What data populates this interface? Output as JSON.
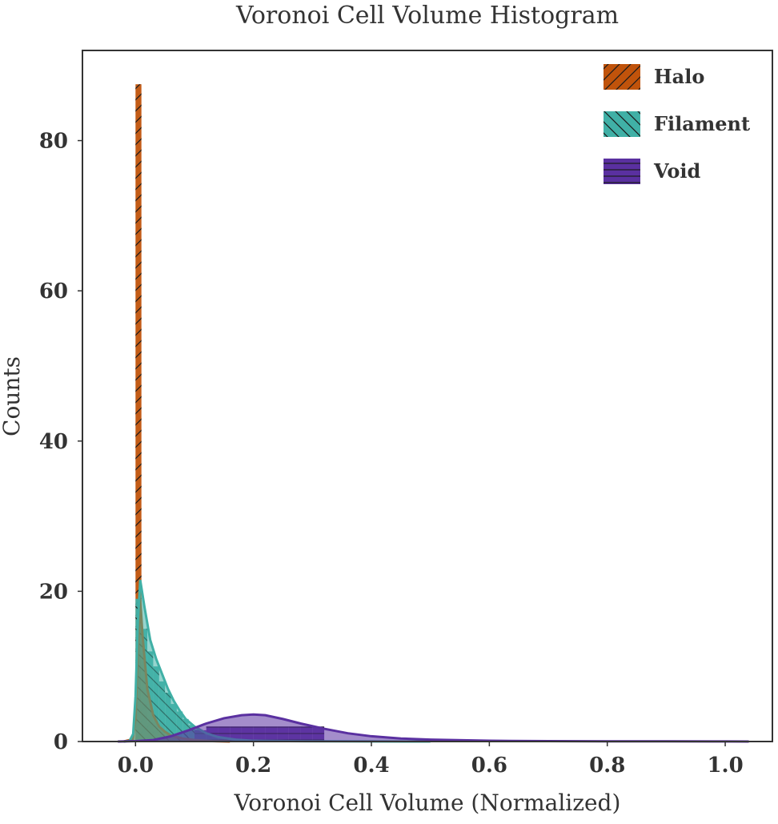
{
  "chart_data": {
    "type": "bar",
    "title": "Voronoi Cell Volume Histogram",
    "xlabel": "Voronoi Cell Volume (Normalized)",
    "ylabel": "Counts",
    "xlim": [
      -0.09,
      1.08
    ],
    "ylim": [
      0,
      92
    ],
    "xticks": [
      0.0,
      0.2,
      0.4,
      0.6,
      0.8,
      1.0
    ],
    "xtick_labels": [
      "0.0",
      "0.2",
      "0.4",
      "0.6",
      "0.8",
      "1.0"
    ],
    "yticks": [
      0,
      20,
      40,
      60,
      80
    ],
    "ytick_labels": [
      "0",
      "20",
      "40",
      "60",
      "80"
    ],
    "grid": false,
    "legend_position": "top-right",
    "series": [
      {
        "name": "Halo",
        "color": "#c0530b",
        "hatch": "diagonal-forward",
        "bins": [
          {
            "x0": 0.0,
            "x1": 0.01,
            "count": 87.5
          },
          {
            "x0": 0.01,
            "x1": 0.02,
            "count": 5
          },
          {
            "x0": 0.02,
            "x1": 0.03,
            "count": 2.5
          },
          {
            "x0": 0.03,
            "x1": 0.04,
            "count": 1.5
          },
          {
            "x0": 0.04,
            "x1": 0.05,
            "count": 1
          },
          {
            "x0": 0.05,
            "x1": 0.06,
            "count": 0.6
          },
          {
            "x0": 0.06,
            "x1": 0.07,
            "count": 0.4
          },
          {
            "x0": 0.07,
            "x1": 0.08,
            "count": 0.3
          },
          {
            "x0": 0.08,
            "x1": 0.09,
            "count": 0.2
          }
        ],
        "kde": [
          [
            -0.02,
            0
          ],
          [
            -0.005,
            0.3
          ],
          [
            0.0,
            3
          ],
          [
            0.004,
            12
          ],
          [
            0.008,
            19
          ],
          [
            0.012,
            14
          ],
          [
            0.02,
            7
          ],
          [
            0.03,
            3.5
          ],
          [
            0.04,
            2.0
          ],
          [
            0.05,
            1.3
          ],
          [
            0.06,
            0.8
          ],
          [
            0.08,
            0.4
          ],
          [
            0.1,
            0.2
          ],
          [
            0.13,
            0.05
          ],
          [
            0.16,
            0
          ]
        ]
      },
      {
        "name": "Filament",
        "color": "#40b0a6",
        "hatch": "diagonal-backward",
        "bins": [
          {
            "x0": 0.0,
            "x1": 0.01,
            "count": 19
          },
          {
            "x0": 0.01,
            "x1": 0.02,
            "count": 15
          },
          {
            "x0": 0.02,
            "x1": 0.03,
            "count": 12
          },
          {
            "x0": 0.03,
            "x1": 0.04,
            "count": 10
          },
          {
            "x0": 0.04,
            "x1": 0.05,
            "count": 8
          },
          {
            "x0": 0.05,
            "x1": 0.06,
            "count": 6.5
          },
          {
            "x0": 0.06,
            "x1": 0.07,
            "count": 5
          },
          {
            "x0": 0.07,
            "x1": 0.08,
            "count": 4
          },
          {
            "x0": 0.08,
            "x1": 0.09,
            "count": 3
          },
          {
            "x0": 0.09,
            "x1": 0.1,
            "count": 2.2
          },
          {
            "x0": 0.1,
            "x1": 0.11,
            "count": 1.6
          },
          {
            "x0": 0.11,
            "x1": 0.12,
            "count": 1.1
          },
          {
            "x0": 0.12,
            "x1": 0.13,
            "count": 0.8
          },
          {
            "x0": 0.13,
            "x1": 0.14,
            "count": 0.5
          },
          {
            "x0": 0.14,
            "x1": 0.15,
            "count": 0.35
          },
          {
            "x0": 0.15,
            "x1": 0.16,
            "count": 0.2
          }
        ],
        "kde": [
          [
            -0.02,
            0
          ],
          [
            -0.01,
            0.1
          ],
          [
            -0.004,
            1
          ],
          [
            0.0,
            6
          ],
          [
            0.004,
            16
          ],
          [
            0.008,
            21.5
          ],
          [
            0.015,
            18
          ],
          [
            0.025,
            13.5
          ],
          [
            0.035,
            11
          ],
          [
            0.045,
            9
          ],
          [
            0.055,
            7
          ],
          [
            0.065,
            5.4
          ],
          [
            0.075,
            4.1
          ],
          [
            0.085,
            3.0
          ],
          [
            0.1,
            2.0
          ],
          [
            0.12,
            1.1
          ],
          [
            0.14,
            0.6
          ],
          [
            0.17,
            0.25
          ],
          [
            0.2,
            0.1
          ],
          [
            0.26,
            0.05
          ],
          [
            0.35,
            0.02
          ],
          [
            0.5,
            0
          ]
        ]
      },
      {
        "name": "Void",
        "color": "#5a30a0",
        "hatch": "horizontal",
        "bins": [
          {
            "x0": 0.1,
            "x1": 0.12,
            "count": 1.5
          },
          {
            "x0": 0.12,
            "x1": 0.14,
            "count": 2.0
          },
          {
            "x0": 0.14,
            "x1": 0.16,
            "count": 2.0
          },
          {
            "x0": 0.16,
            "x1": 0.18,
            "count": 2.0
          },
          {
            "x0": 0.18,
            "x1": 0.2,
            "count": 2.0
          },
          {
            "x0": 0.2,
            "x1": 0.22,
            "count": 2.0
          },
          {
            "x0": 0.22,
            "x1": 0.24,
            "count": 2.0
          },
          {
            "x0": 0.24,
            "x1": 0.26,
            "count": 2.0
          },
          {
            "x0": 0.26,
            "x1": 0.28,
            "count": 2.0
          },
          {
            "x0": 0.28,
            "x1": 0.3,
            "count": 2.0
          },
          {
            "x0": 0.3,
            "x1": 0.32,
            "count": 2.0
          }
        ],
        "kde": [
          [
            -0.03,
            0
          ],
          [
            0.0,
            0.05
          ],
          [
            0.03,
            0.2
          ],
          [
            0.06,
            0.7
          ],
          [
            0.09,
            1.5
          ],
          [
            0.12,
            2.4
          ],
          [
            0.15,
            3.1
          ],
          [
            0.18,
            3.5
          ],
          [
            0.2,
            3.6
          ],
          [
            0.22,
            3.5
          ],
          [
            0.25,
            3.0
          ],
          [
            0.28,
            2.4
          ],
          [
            0.32,
            1.7
          ],
          [
            0.36,
            1.1
          ],
          [
            0.4,
            0.7
          ],
          [
            0.45,
            0.4
          ],
          [
            0.5,
            0.25
          ],
          [
            0.6,
            0.1
          ],
          [
            0.7,
            0.05
          ],
          [
            0.8,
            0.03
          ],
          [
            0.9,
            0.02
          ],
          [
            1.0,
            0.01
          ],
          [
            1.04,
            0
          ]
        ]
      }
    ]
  }
}
